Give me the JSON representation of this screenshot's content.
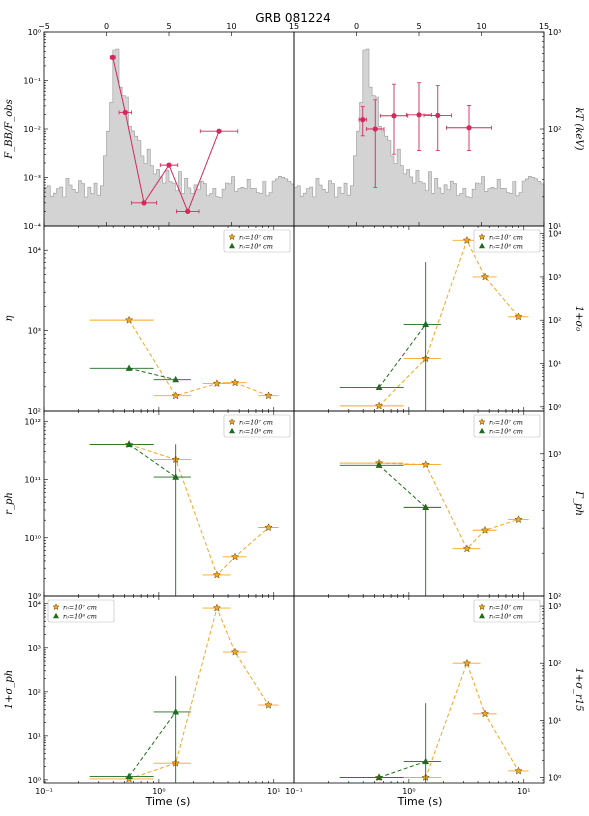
{
  "figure": {
    "title": "GRB 081224",
    "x_label": "Time (s)"
  },
  "chart_data": [
    {
      "panel": "F_BB/F_obs",
      "type": "line",
      "title": "GRB 081224",
      "ylabel": "F_BB/F_obs",
      "yscale": "log",
      "ylim": [
        0.0001,
        1
      ],
      "ytick_labels": [
        "10⁻⁴",
        "10⁻³",
        "10⁻²",
        "10⁻¹",
        "10⁰"
      ],
      "xlim": [
        -5,
        15
      ],
      "xtick_labels": [
        "−5",
        "0",
        "5",
        "10",
        "15"
      ],
      "background": "light-curve histogram (grey)",
      "series": [
        {
          "color": "#d6285a",
          "marker": "circle",
          "x": [
            0.5,
            1.5,
            3.0,
            5.0,
            6.5,
            9.0
          ],
          "xerr": [
            0.2,
            0.5,
            1.0,
            0.7,
            0.9,
            1.5
          ],
          "y": [
            0.3,
            0.022,
            0.0003,
            0.0018,
            0.0002,
            0.009
          ]
        }
      ]
    },
    {
      "panel": "kT",
      "type": "scatter",
      "ylabel": "kT (keV)",
      "yscale": "log",
      "ylim": [
        10,
        1000
      ],
      "ytick_labels": [
        "10¹",
        "10²",
        "10³"
      ],
      "xlim": [
        -5,
        15
      ],
      "xtick_labels": [
        "0",
        "5",
        "10",
        "15"
      ],
      "background": "light-curve histogram (grey)",
      "series": [
        {
          "color": "#d6285a",
          "marker": "circle",
          "x": [
            0.5,
            1.5,
            3.0,
            5.0,
            6.5,
            9.0
          ],
          "xerr": [
            0.3,
            0.7,
            1.1,
            1.0,
            1.1,
            1.8
          ],
          "y": [
            125,
            100,
            137,
            140,
            138,
            103
          ],
          "ylo": [
            85,
            25,
            55,
            60,
            60,
            60
          ],
          "yhi": [
            170,
            200,
            290,
            300,
            280,
            175
          ]
        }
      ]
    },
    {
      "panel": "eta",
      "type": "scatter",
      "ylabel": "η",
      "yscale": "log",
      "ylim": [
        100,
        20000
      ],
      "ytick_labels": [
        "10²",
        "10³",
        "10⁴"
      ],
      "xscale": "log",
      "xlim": [
        0.1,
        15
      ],
      "series": [
        {
          "name": "r₀=10⁷ cm",
          "color": "#f5a623",
          "marker": "star",
          "x": [
            0.55,
            1.4,
            3.2,
            4.6,
            9.0
          ],
          "xlo": [
            0.25,
            0.9,
            2.4,
            3.6,
            7.3
          ],
          "xhi": [
            0.9,
            1.9,
            4.2,
            5.8,
            11.0
          ],
          "y": [
            1350,
            155,
            220,
            225,
            155
          ]
        },
        {
          "name": "r₀=10⁸ cm",
          "color": "#1f6b1f",
          "marker": "triangle",
          "x": [
            0.55,
            1.4
          ],
          "xlo": [
            0.25,
            0.9
          ],
          "xhi": [
            0.9,
            1.9
          ],
          "y": [
            340,
            245
          ]
        }
      ]
    },
    {
      "panel": "1+sigma_0",
      "type": "scatter",
      "ylabel": "1+σ₀",
      "yscale": "log",
      "ylim": [
        0.8,
        15000
      ],
      "ytick_labels": [
        "10⁰",
        "10¹",
        "10²",
        "10³",
        "10⁴"
      ],
      "xscale": "log",
      "xlim": [
        0.1,
        15
      ],
      "series": [
        {
          "name": "r₀=10⁷ cm",
          "color": "#f5a623",
          "marker": "star",
          "x": [
            0.55,
            1.4,
            3.2,
            4.6,
            9.0
          ],
          "xlo": [
            0.25,
            0.9,
            2.4,
            3.6,
            7.3
          ],
          "xhi": [
            0.9,
            1.9,
            4.2,
            5.8,
            11.0
          ],
          "y": [
            1.05,
            13,
            7000,
            1000,
            120
          ]
        },
        {
          "name": "r₀=10⁸ cm",
          "color": "#1f6b1f",
          "marker": "triangle",
          "x": [
            0.55,
            1.4
          ],
          "xlo": [
            0.25,
            0.9
          ],
          "xhi": [
            0.9,
            1.9
          ],
          "y": [
            2.8,
            80
          ],
          "ylo": [
            2.8,
            0.8
          ],
          "yhi": [
            2.8,
            2200
          ]
        }
      ]
    },
    {
      "panel": "r_ph",
      "type": "scatter",
      "ylabel": "r_ph",
      "yscale": "log",
      "ylim": [
        1000000000.0,
        1500000000000.0
      ],
      "ytick_labels": [
        "10⁹",
        "10¹⁰",
        "10¹¹",
        "10¹²"
      ],
      "xscale": "log",
      "xlim": [
        0.1,
        15
      ],
      "series": [
        {
          "name": "r₀=10⁷ cm",
          "color": "#f5a623",
          "marker": "star",
          "x": [
            0.55,
            1.4,
            3.2,
            4.6,
            9.0
          ],
          "xlo": [
            0.25,
            0.9,
            2.4,
            3.6,
            7.3
          ],
          "xhi": [
            0.9,
            1.9,
            4.2,
            5.8,
            11.0
          ],
          "y": [
            400000000000.0,
            220000000000.0,
            2300000000.0,
            4700000000.0,
            15000000000.0
          ]
        },
        {
          "name": "r₀=10⁸ cm",
          "color": "#1f6b1f",
          "marker": "triangle",
          "x": [
            0.55,
            1.4
          ],
          "xlo": [
            0.25,
            0.9
          ],
          "xhi": [
            0.9,
            1.9
          ],
          "y": [
            400000000000.0,
            110000000000.0
          ],
          "ylo": [
            400000000000.0,
            1000000000.0
          ],
          "yhi": [
            400000000000.0,
            400000000000.0
          ]
        }
      ]
    },
    {
      "panel": "Gamma_ph",
      "type": "scatter",
      "ylabel": "Γ_ph",
      "yscale": "log",
      "ylim": [
        100,
        2000
      ],
      "ytick_labels": [
        "10²",
        "10³"
      ],
      "xscale": "log",
      "xlim": [
        0.1,
        15
      ],
      "series": [
        {
          "name": "r₀=10⁷ cm",
          "color": "#f5a623",
          "marker": "star",
          "x": [
            0.55,
            1.4,
            3.2,
            4.6,
            9.0
          ],
          "xlo": [
            0.25,
            0.9,
            2.4,
            3.6,
            7.3
          ],
          "xhi": [
            0.9,
            1.9,
            4.2,
            5.8,
            11.0
          ],
          "y": [
            860,
            840,
            215,
            290,
            345
          ]
        },
        {
          "name": "r₀=10⁸ cm",
          "color": "#1f6b1f",
          "marker": "triangle",
          "x": [
            0.55,
            1.4
          ],
          "xlo": [
            0.25,
            0.9
          ],
          "xhi": [
            0.9,
            1.9
          ],
          "y": [
            830,
            420
          ],
          "ylo": [
            830,
            100
          ],
          "yhi": [
            830,
            420
          ]
        }
      ]
    },
    {
      "panel": "1+sigma_ph",
      "type": "scatter",
      "ylabel": "1+σ_ph",
      "yscale": "log",
      "ylim": [
        0.85,
        15000
      ],
      "ytick_labels": [
        "10⁰",
        "10¹",
        "10²",
        "10³",
        "10⁴"
      ],
      "xscale": "log",
      "xlim": [
        0.1,
        15
      ],
      "xtick_labels": [
        "10⁻¹",
        "10⁰",
        "10¹"
      ],
      "series": [
        {
          "name": "r₀=10⁷ cm",
          "color": "#f5a623",
          "marker": "star",
          "x": [
            0.55,
            1.4,
            3.2,
            4.6,
            9.0
          ],
          "xlo": [
            0.25,
            0.9,
            2.4,
            3.6,
            7.3
          ],
          "xhi": [
            0.9,
            1.9,
            4.2,
            5.8,
            11.0
          ],
          "y": [
            1.05,
            2.4,
            8000,
            800,
            50
          ]
        },
        {
          "name": "r₀=10⁸ cm",
          "color": "#1f6b1f",
          "marker": "triangle",
          "x": [
            0.55,
            1.4
          ],
          "xlo": [
            0.25,
            0.9
          ],
          "xhi": [
            0.9,
            1.9
          ],
          "y": [
            1.2,
            35
          ],
          "ylo": [
            1.2,
            0.85
          ],
          "yhi": [
            1.2,
            230
          ]
        }
      ]
    },
    {
      "panel": "1+sigma_r15",
      "type": "scatter",
      "ylabel": "1+σ_r15",
      "yscale": "log",
      "ylim": [
        0.8,
        1500
      ],
      "ytick_labels": [
        "10⁰",
        "10¹",
        "10²",
        "10³"
      ],
      "xscale": "log",
      "xlim": [
        0.1,
        15
      ],
      "xtick_labels": [
        "10⁻¹",
        "10⁰",
        "10¹"
      ],
      "series": [
        {
          "name": "r₀=10⁷ cm",
          "color": "#f5a623",
          "marker": "star",
          "x": [
            0.55,
            1.4,
            3.2,
            4.6,
            9.0
          ],
          "xlo": [
            0.25,
            0.9,
            2.4,
            3.6,
            7.3
          ],
          "xhi": [
            0.9,
            1.9,
            4.2,
            5.8,
            11.0
          ],
          "y": [
            1.0,
            1.0,
            100,
            13,
            1.3
          ]
        },
        {
          "name": "r₀=10⁸ cm",
          "color": "#1f6b1f",
          "marker": "triangle",
          "x": [
            0.55,
            1.4
          ],
          "xlo": [
            0.25,
            0.9
          ],
          "xhi": [
            0.9,
            1.9
          ],
          "y": [
            1.0,
            1.9
          ],
          "ylo": [
            1.0,
            0.8
          ],
          "yhi": [
            1.0,
            20
          ]
        }
      ]
    }
  ]
}
